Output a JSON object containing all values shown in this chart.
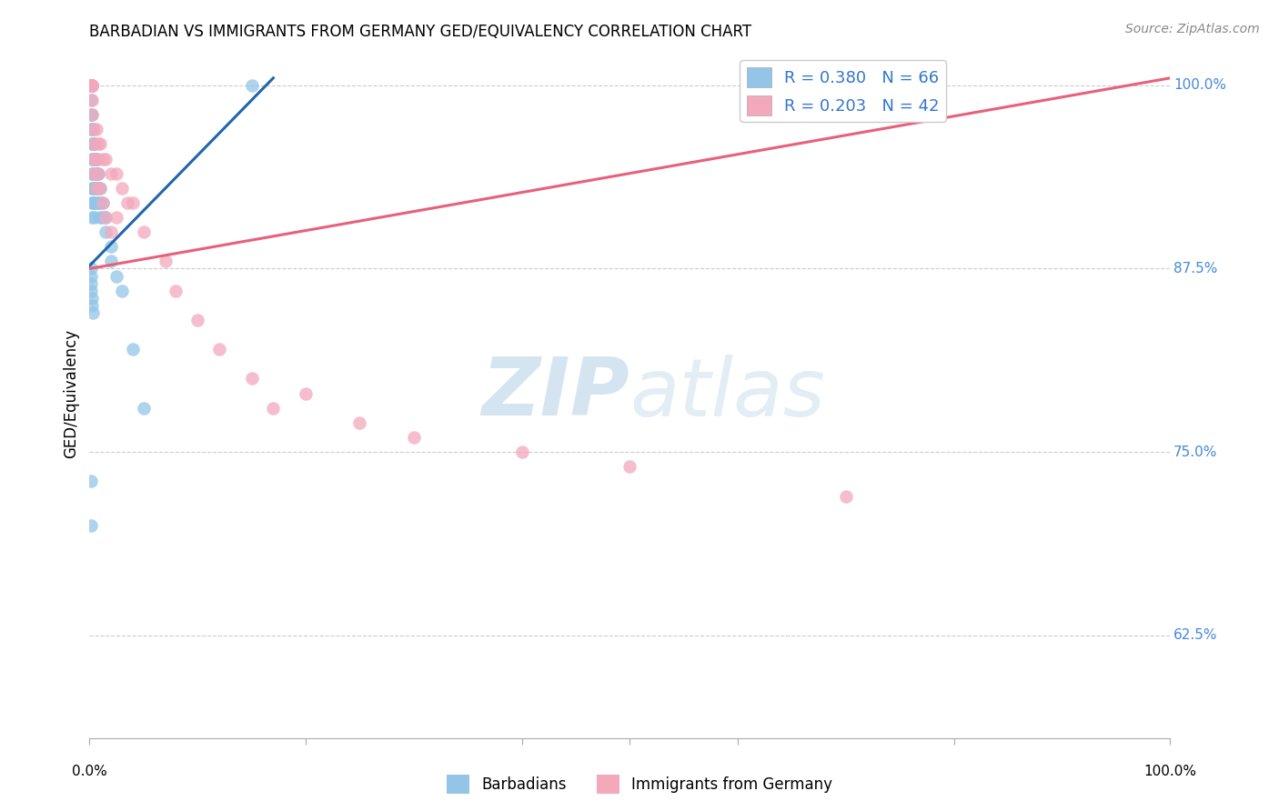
{
  "title": "BARBADIAN VS IMMIGRANTS FROM GERMANY GED/EQUIVALENCY CORRELATION CHART",
  "source": "Source: ZipAtlas.com",
  "ylabel": "GED/Equivalency",
  "ytick_labels": [
    "100.0%",
    "87.5%",
    "75.0%",
    "62.5%"
  ],
  "ytick_values": [
    1.0,
    0.875,
    0.75,
    0.625
  ],
  "xlim": [
    0.0,
    1.0
  ],
  "ylim": [
    0.555,
    1.025
  ],
  "blue_color": "#92c5e8",
  "pink_color": "#f4a8bc",
  "blue_line_color": "#2166ac",
  "pink_line_color": "#e8607a",
  "watermark_color": "#ddeef8",
  "barbadian_x": [
    0.001,
    0.001,
    0.001,
    0.001,
    0.001,
    0.001,
    0.001,
    0.001,
    0.002,
    0.002,
    0.002,
    0.002,
    0.002,
    0.002,
    0.002,
    0.002,
    0.003,
    0.003,
    0.003,
    0.003,
    0.003,
    0.003,
    0.004,
    0.004,
    0.004,
    0.004,
    0.004,
    0.005,
    0.005,
    0.005,
    0.005,
    0.005,
    0.006,
    0.006,
    0.006,
    0.006,
    0.007,
    0.007,
    0.007,
    0.008,
    0.008,
    0.008,
    0.01,
    0.01,
    0.01,
    0.012,
    0.012,
    0.015,
    0.015,
    0.02,
    0.02,
    0.025,
    0.03,
    0.04,
    0.05,
    0.001,
    0.001,
    0.001,
    0.001,
    0.002,
    0.002,
    0.003,
    0.15,
    0.001,
    0.001
  ],
  "barbadian_y": [
    1.0,
    1.0,
    1.0,
    1.0,
    1.0,
    0.99,
    0.98,
    0.97,
    0.98,
    0.97,
    0.96,
    0.95,
    0.94,
    0.93,
    0.92,
    0.91,
    0.97,
    0.96,
    0.95,
    0.94,
    0.93,
    0.92,
    0.96,
    0.95,
    0.94,
    0.93,
    0.92,
    0.96,
    0.95,
    0.94,
    0.93,
    0.91,
    0.95,
    0.94,
    0.93,
    0.92,
    0.95,
    0.94,
    0.93,
    0.94,
    0.93,
    0.92,
    0.93,
    0.92,
    0.91,
    0.92,
    0.91,
    0.91,
    0.9,
    0.89,
    0.88,
    0.87,
    0.86,
    0.82,
    0.78,
    0.875,
    0.87,
    0.865,
    0.86,
    0.855,
    0.85,
    0.845,
    1.0,
    0.73,
    0.7
  ],
  "germany_x": [
    0.002,
    0.002,
    0.002,
    0.002,
    0.002,
    0.002,
    0.002,
    0.004,
    0.004,
    0.004,
    0.004,
    0.006,
    0.006,
    0.006,
    0.008,
    0.008,
    0.01,
    0.01,
    0.012,
    0.012,
    0.015,
    0.015,
    0.02,
    0.02,
    0.025,
    0.025,
    0.03,
    0.035,
    0.04,
    0.05,
    0.07,
    0.08,
    0.1,
    0.12,
    0.15,
    0.17,
    0.2,
    0.25,
    0.3,
    0.4,
    0.5,
    0.7
  ],
  "germany_y": [
    1.0,
    1.0,
    1.0,
    1.0,
    1.0,
    0.99,
    0.98,
    0.97,
    0.96,
    0.95,
    0.94,
    0.97,
    0.95,
    0.93,
    0.96,
    0.94,
    0.96,
    0.93,
    0.95,
    0.92,
    0.95,
    0.91,
    0.94,
    0.9,
    0.94,
    0.91,
    0.93,
    0.92,
    0.92,
    0.9,
    0.88,
    0.86,
    0.84,
    0.82,
    0.8,
    0.78,
    0.79,
    0.77,
    0.76,
    0.75,
    0.74,
    0.72
  ],
  "blue_regression_x0": 0.0,
  "blue_regression_y0": 0.877,
  "blue_regression_x1": 0.17,
  "blue_regression_y1": 1.005,
  "pink_regression_x0": 0.0,
  "pink_regression_y0": 0.875,
  "pink_regression_x1": 1.0,
  "pink_regression_y1": 1.005
}
